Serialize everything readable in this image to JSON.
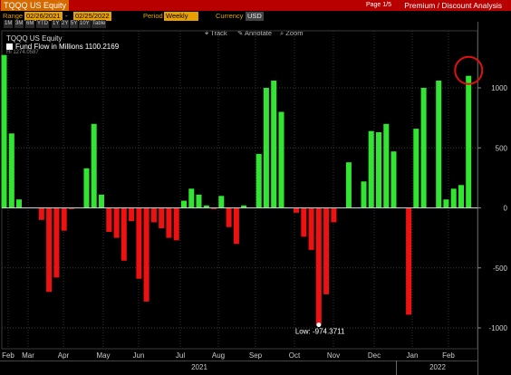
{
  "header": {
    "ticker": "TQQQ US Equity",
    "page": "Page 1/5",
    "function": "Premium / Discount Analysis"
  },
  "params": {
    "range_label": "Range",
    "range_start": "02/26/2021",
    "range_dash": "-",
    "range_end": "02/25/2022",
    "period_label": "Period",
    "period_value": "Weekly",
    "currency_label": "Currency",
    "currency_value": "USD"
  },
  "period_buttons": [
    "1M",
    "3M",
    "6M",
    "YTD",
    "1Y",
    "2Y",
    "5Y",
    "10Y",
    "Table"
  ],
  "toolbar": {
    "track": "Track",
    "annotate": "Annotate",
    "zoom": "Zoom"
  },
  "legend": {
    "title": "TQQQ US Equity",
    "item": "Fund Flow in Millions 1100.2169",
    "faded": "Hi 1274.0587"
  },
  "colors": {
    "positive": "#33e533",
    "negative": "#ee1111",
    "highlight": "#e01010"
  },
  "icons": {
    "track": "crosshair-icon",
    "annotate": "pencil-icon",
    "zoom": "magnifier-icon"
  },
  "chart_data": {
    "type": "bar",
    "ylim": [
      -1050,
      1320
    ],
    "yticks": [
      -1000,
      -500,
      0,
      500,
      1000
    ],
    "values": [
      1274.06,
      620,
      70,
      0,
      0,
      -100,
      -700,
      -580,
      -190,
      -10,
      0,
      330,
      700,
      110,
      -200,
      -250,
      -440,
      -110,
      -590,
      -780,
      -120,
      -170,
      -250,
      -270,
      60,
      160,
      110,
      20,
      -10,
      100,
      -160,
      -300,
      20,
      0,
      450,
      1000,
      1060,
      800,
      0,
      -40,
      -240,
      -350,
      -974.37,
      -720,
      -120,
      0,
      380,
      0,
      220,
      640,
      630,
      700,
      470,
      0,
      -890,
      660,
      1000,
      0,
      1060,
      70,
      160,
      190,
      1100.22
    ],
    "x_month_labels": [
      "Feb",
      "Mar",
      "Apr",
      "May",
      "Jun",
      "Jul",
      "Aug",
      "Sep",
      "Oct",
      "Nov",
      "Dec",
      "Jan",
      "Feb"
    ],
    "year_labels": [
      "2021",
      "2022"
    ],
    "low_annotation": "Low: -974.3711",
    "legend_placement": "top-left",
    "grid": true
  }
}
